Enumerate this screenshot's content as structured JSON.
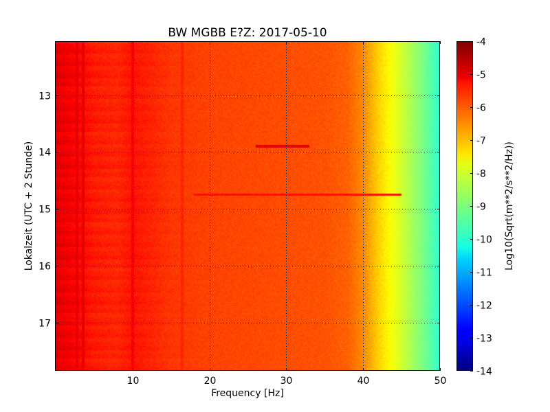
{
  "chart_data": {
    "type": "heatmap",
    "title": "BW MGBB E?Z: 2017-05-10",
    "xlabel": "Frequency [Hz]",
    "ylabel": "Lokalzeit (UTC + 2 Stunde)",
    "xlim": [
      0,
      50
    ],
    "ylim": [
      12.05,
      17.85
    ],
    "y_inverted": true,
    "grid": true,
    "x_ticks": [
      "10",
      "20",
      "30",
      "40",
      "50"
    ],
    "x_tick_values": [
      10,
      20,
      30,
      40,
      50
    ],
    "y_ticks": [
      "13",
      "14",
      "15",
      "16",
      "17"
    ],
    "y_tick_values": [
      13,
      14,
      15,
      16,
      17
    ],
    "colormap": "jet",
    "colorbar": {
      "label": "Log10(Sqrt(m**2/s**2/Hz))",
      "range": [
        -14,
        -4
      ],
      "ticks": [
        "-4",
        "-5",
        "-6",
        "-7",
        "-8",
        "-9",
        "-10",
        "-11",
        "-12",
        "-13",
        "-14"
      ],
      "tick_values": [
        -4,
        -5,
        -6,
        -7,
        -8,
        -9,
        -10,
        -11,
        -12,
        -13,
        -14
      ]
    },
    "frequency_profile": {
      "frequency_hz": [
        0,
        2,
        5,
        8,
        10,
        15,
        20,
        25,
        30,
        35,
        38,
        40,
        42,
        44,
        46,
        48,
        50
      ],
      "log10_amplitude": [
        -5.1,
        -5.3,
        -5.6,
        -5.7,
        -5.5,
        -5.8,
        -5.9,
        -5.95,
        -6.0,
        -6.05,
        -6.2,
        -6.6,
        -7.3,
        -7.9,
        -8.5,
        -9.1,
        -9.8
      ]
    },
    "features": [
      {
        "kind": "vertical_line",
        "freq_hz": 10,
        "log10_amplitude": -5.2
      },
      {
        "kind": "vertical_line",
        "freq_hz": 16.5,
        "log10_amplitude": -5.6
      },
      {
        "kind": "vertical_line",
        "freq_hz": 2.8,
        "log10_amplitude": -5.0
      },
      {
        "kind": "vertical_line",
        "freq_hz": 3.6,
        "log10_amplitude": -5.0
      },
      {
        "kind": "horizontal_line",
        "time": 13.9,
        "freq_range": [
          26,
          33
        ],
        "log10_amplitude": -5.0
      },
      {
        "kind": "horizontal_line",
        "time": 14.75,
        "freq_range": [
          18,
          45
        ],
        "log10_amplitude": -5.4
      }
    ],
    "colors": {
      "background": "#ffffff",
      "axes": "#000000",
      "grid": "#000000"
    }
  }
}
